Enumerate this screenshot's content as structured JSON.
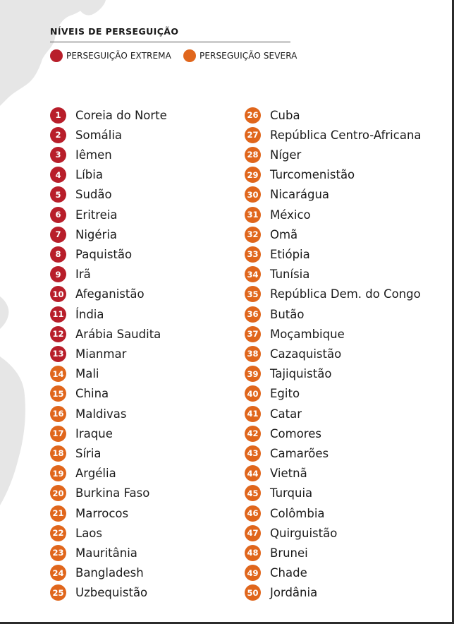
{
  "legend": {
    "title": "NÍVEIS DE PERSEGUIÇÃO",
    "extreme_label": "PERSEGUIÇÃO EXTREMA",
    "severe_label": "PERSEGUIÇÃO SEVERA"
  },
  "colors": {
    "extreme": "#b81e2a",
    "severe": "#e0661c",
    "map": "#e6e6e6"
  },
  "countries": [
    {
      "rank": "1",
      "name": "Coreia do Norte",
      "level": "extreme"
    },
    {
      "rank": "2",
      "name": "Somália",
      "level": "extreme"
    },
    {
      "rank": "3",
      "name": "Iêmen",
      "level": "extreme"
    },
    {
      "rank": "4",
      "name": "Líbia",
      "level": "extreme"
    },
    {
      "rank": "5",
      "name": "Sudão",
      "level": "extreme"
    },
    {
      "rank": "6",
      "name": "Eritreia",
      "level": "extreme"
    },
    {
      "rank": "7",
      "name": "Nigéria",
      "level": "extreme"
    },
    {
      "rank": "8",
      "name": "Paquistão",
      "level": "extreme"
    },
    {
      "rank": "9",
      "name": "Irã",
      "level": "extreme"
    },
    {
      "rank": "10",
      "name": "Afeganistão",
      "level": "extreme"
    },
    {
      "rank": "11",
      "name": "Índia",
      "level": "extreme"
    },
    {
      "rank": "12",
      "name": "Arábia Saudita",
      "level": "extreme"
    },
    {
      "rank": "13",
      "name": "Mianmar",
      "level": "extreme"
    },
    {
      "rank": "14",
      "name": "Mali",
      "level": "severe"
    },
    {
      "rank": "15",
      "name": "China",
      "level": "severe"
    },
    {
      "rank": "16",
      "name": "Maldivas",
      "level": "severe"
    },
    {
      "rank": "17",
      "name": "Iraque",
      "level": "severe"
    },
    {
      "rank": "18",
      "name": "Síria",
      "level": "severe"
    },
    {
      "rank": "19",
      "name": "Argélia",
      "level": "severe"
    },
    {
      "rank": "20",
      "name": "Burkina Faso",
      "level": "severe"
    },
    {
      "rank": "21",
      "name": "Marrocos",
      "level": "severe"
    },
    {
      "rank": "22",
      "name": "Laos",
      "level": "severe"
    },
    {
      "rank": "23",
      "name": "Mauritânia",
      "level": "severe"
    },
    {
      "rank": "24",
      "name": "Bangladesh",
      "level": "severe"
    },
    {
      "rank": "25",
      "name": "Uzbequistão",
      "level": "severe"
    },
    {
      "rank": "26",
      "name": "Cuba",
      "level": "severe"
    },
    {
      "rank": "27",
      "name": "República Centro-Africana",
      "level": "severe"
    },
    {
      "rank": "28",
      "name": "Níger",
      "level": "severe"
    },
    {
      "rank": "29",
      "name": "Turcomenistão",
      "level": "severe"
    },
    {
      "rank": "30",
      "name": "Nicarágua",
      "level": "severe"
    },
    {
      "rank": "31",
      "name": "México",
      "level": "severe"
    },
    {
      "rank": "32",
      "name": "Omã",
      "level": "severe"
    },
    {
      "rank": "33",
      "name": "Etiópia",
      "level": "severe"
    },
    {
      "rank": "34",
      "name": "Tunísia",
      "level": "severe"
    },
    {
      "rank": "35",
      "name": "República Dem. do Congo",
      "level": "severe"
    },
    {
      "rank": "36",
      "name": "Butão",
      "level": "severe"
    },
    {
      "rank": "37",
      "name": "Moçambique",
      "level": "severe"
    },
    {
      "rank": "38",
      "name": "Cazaquistão",
      "level": "severe"
    },
    {
      "rank": "39",
      "name": "Tajiquistão",
      "level": "severe"
    },
    {
      "rank": "40",
      "name": "Egito",
      "level": "severe"
    },
    {
      "rank": "41",
      "name": "Catar",
      "level": "severe"
    },
    {
      "rank": "42",
      "name": "Comores",
      "level": "severe"
    },
    {
      "rank": "43",
      "name": "Camarões",
      "level": "severe"
    },
    {
      "rank": "44",
      "name": "Vietnã",
      "level": "severe"
    },
    {
      "rank": "45",
      "name": "Turquia",
      "level": "severe"
    },
    {
      "rank": "46",
      "name": "Colômbia",
      "level": "severe"
    },
    {
      "rank": "47",
      "name": "Quirguistão",
      "level": "severe"
    },
    {
      "rank": "48",
      "name": "Brunei",
      "level": "severe"
    },
    {
      "rank": "49",
      "name": "Chade",
      "level": "severe"
    },
    {
      "rank": "50",
      "name": "Jordânia",
      "level": "severe"
    }
  ]
}
